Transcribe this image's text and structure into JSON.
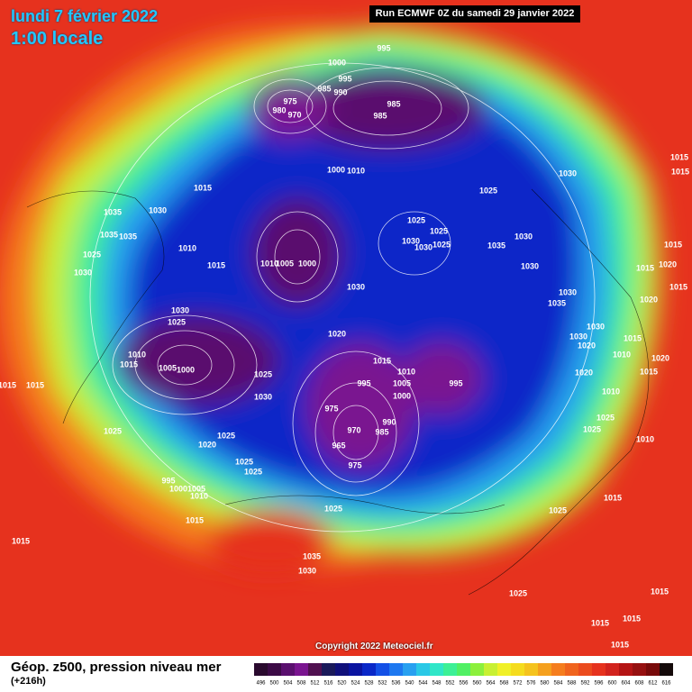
{
  "header": {
    "date": "lundi 7 février 2022",
    "time": "1:00 locale",
    "run": "Run ECMWF 0Z du samedi 29 janvier 2022"
  },
  "footer": {
    "title": "Géop. z500, pression niveau mer",
    "lead": "(+216h)",
    "copyright": "Copyright 2022 Meteociel.fr"
  },
  "colorbar": {
    "labels": [
      496,
      500,
      504,
      508,
      512,
      516,
      520,
      524,
      528,
      532,
      536,
      540,
      544,
      548,
      552,
      556,
      560,
      564,
      568,
      572,
      576,
      580,
      584,
      588,
      592,
      596,
      600,
      604,
      608,
      612,
      616
    ],
    "colors": [
      "#2a0a2e",
      "#3c0a46",
      "#5a0f6e",
      "#7a1490",
      "#501050",
      "#1a1a5a",
      "#10107a",
      "#0a14a0",
      "#0a28c8",
      "#1450e6",
      "#1e78f0",
      "#28a0f0",
      "#2ac8e6",
      "#30e6c8",
      "#3cf096",
      "#50f064",
      "#8cf03c",
      "#c8f032",
      "#f0f028",
      "#f5dc1e",
      "#f5c31e",
      "#f5a01e",
      "#f57d1e",
      "#f0641e",
      "#eb4b1e",
      "#e6321e",
      "#d2231e",
      "#b41414",
      "#961010",
      "#780a0a",
      "#140a0a"
    ]
  },
  "map": {
    "pressure_labels": [
      995,
      1000,
      995,
      985,
      990,
      975,
      980,
      970,
      985,
      985,
      1000,
      1010,
      1025,
      1030,
      1015,
      1035,
      1030,
      1035,
      1035,
      1025,
      1010,
      1015,
      1030,
      1010,
      1005,
      1000,
      1025,
      1025,
      1030,
      1030,
      1025,
      1035,
      1030,
      1030,
      1030,
      1030,
      1035,
      1030,
      1025,
      1020,
      1030,
      1030,
      1020,
      1010,
      1015,
      1005,
      1000,
      1015,
      1010,
      1025,
      995,
      1005,
      1000,
      995,
      1030,
      975,
      970,
      990,
      985,
      965,
      975,
      1025,
      1025,
      1020,
      1025,
      1025,
      995,
      1000,
      1005,
      1010,
      1015,
      1015,
      1025,
      1035,
      1030,
      1025,
      1015,
      1025,
      1015,
      1015,
      1015,
      1020,
      1015,
      1015,
      1020,
      1015,
      1010,
      1015,
      1020,
      1020,
      1010,
      1025,
      1025,
      1010,
      1015,
      1015,
      1015,
      1015,
      1015,
      1015
    ]
  }
}
